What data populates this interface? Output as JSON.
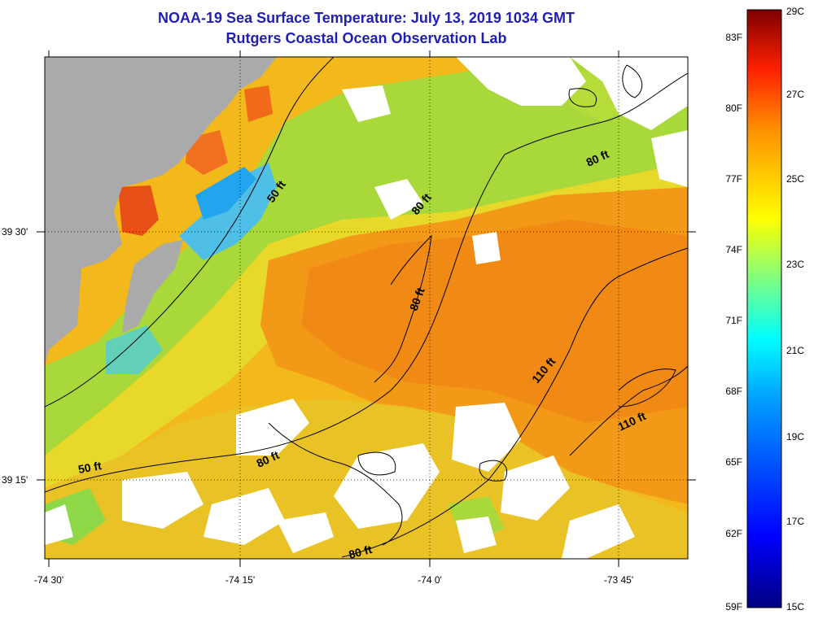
{
  "header": {
    "title": "NOAA-19 Sea Surface Temperature:  July 13, 2019 1034 GMT",
    "subtitle": "Rutgers Coastal Ocean Observation Lab"
  },
  "map": {
    "lon_labels": [
      "-74 30'",
      "-74 15'",
      "-74 0'",
      "-73 45'"
    ],
    "lat_labels": [
      "39 30'",
      "39 15'"
    ],
    "contour_labels": [
      "50 ft",
      "50 ft",
      "80 ft",
      "80 ft",
      "80 ft",
      "80 ft",
      "80 ft",
      "110 ft",
      "110 ft"
    ],
    "colors": {
      "land": "#aaaaaa",
      "cloud": "#ffffff",
      "contour": "#000000"
    }
  },
  "colorbar": {
    "f_labels": [
      "83F",
      "80F",
      "77F",
      "74F",
      "71F",
      "68F",
      "65F",
      "62F",
      "59F"
    ],
    "c_labels": [
      "29C",
      "27C",
      "25C",
      "23C",
      "21C",
      "19C",
      "17C",
      "15C"
    ],
    "colors": [
      "#00007f",
      "#0000ff",
      "#007fff",
      "#00ffff",
      "#7fff7f",
      "#ffff00",
      "#ff7f00",
      "#ff0000",
      "#7f0000"
    ]
  }
}
